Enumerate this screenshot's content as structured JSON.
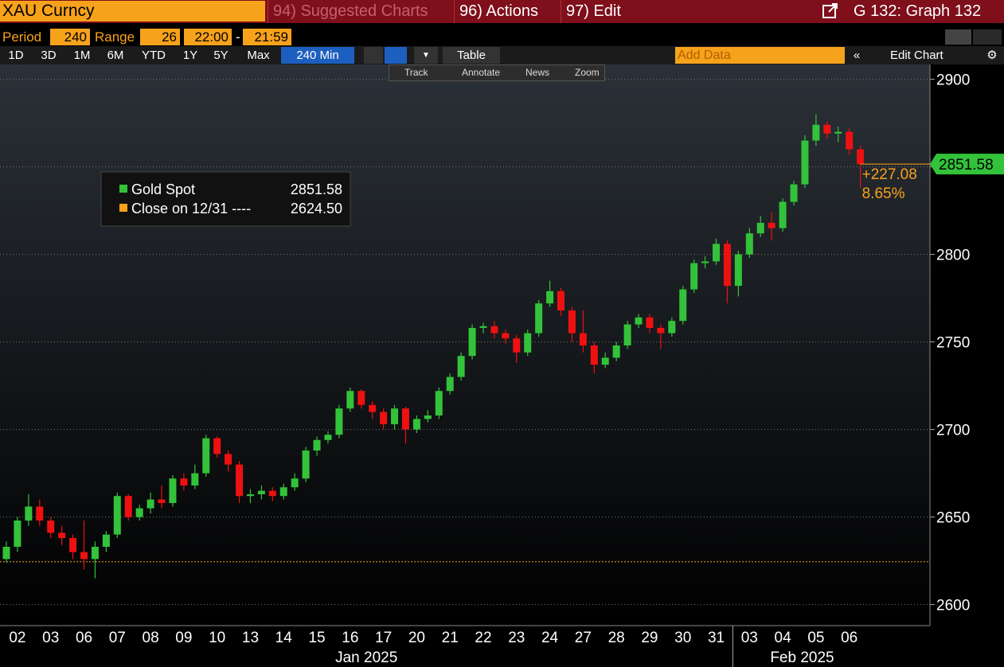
{
  "ui": {
    "security": "XAU Curncy",
    "menus": [
      "94) Suggested Charts",
      "96) Actions",
      "97) Edit"
    ],
    "graph": "G 132: Graph 132",
    "period_label": "Period",
    "period": 240,
    "range_label": "Range",
    "range": 26,
    "start": "22:00",
    "dash": "-",
    "end": "21:59",
    "ranges": [
      "1D",
      "3D",
      "1M",
      "6M",
      "YTD",
      "1Y",
      "5Y",
      "Max",
      "240 Min"
    ],
    "table": "Table",
    "add_data": "Add Data",
    "edit_chart": "Edit Chart",
    "tools": [
      "Track",
      "Annotate",
      "News",
      "Zoom"
    ]
  },
  "chart_data": {
    "type": "candlestick",
    "categories": [
      null,
      "02",
      null,
      null,
      "03",
      null,
      null,
      "06",
      null,
      null,
      "07",
      null,
      null,
      "08",
      null,
      null,
      "09",
      null,
      null,
      "10",
      null,
      null,
      "13",
      null,
      null,
      "14",
      null,
      null,
      "15",
      null,
      null,
      "16",
      null,
      null,
      "17",
      null,
      null,
      "20",
      null,
      null,
      "21",
      null,
      null,
      "22",
      null,
      null,
      "23",
      null,
      null,
      "24",
      null,
      null,
      "27",
      null,
      null,
      "28",
      null,
      null,
      "29",
      null,
      null,
      "30",
      null,
      null,
      "31",
      null,
      null,
      "03",
      null,
      null,
      "04",
      null,
      null,
      "05",
      null,
      null,
      "06",
      null
    ],
    "months": [
      "Jan 2025",
      "Feb 2025"
    ],
    "series": [
      {
        "name": "Gold Spot",
        "up_color": "#33c23a",
        "down_color": "#ee1111",
        "open": [
          2626,
          2633,
          2648,
          2656,
          2648,
          2641,
          2638,
          2630,
          2626,
          2633,
          2640,
          2662,
          2650,
          2655,
          2660,
          2658,
          2672,
          2668,
          2675,
          2695,
          2686,
          2680,
          2662,
          2663,
          2665,
          2662,
          2667,
          2672,
          2688,
          2694,
          2697,
          2712,
          2722,
          2714,
          2710,
          2703,
          2712,
          2700,
          2706,
          2708,
          2722,
          2730,
          2742,
          2758,
          2759,
          2755,
          2752,
          2744,
          2755,
          2772,
          2779,
          2768,
          2755,
          2748,
          2737,
          2741,
          2748,
          2760,
          2764,
          2758,
          2755,
          2762,
          2780,
          2795,
          2796,
          2806,
          2782,
          2800,
          2812,
          2818,
          2815,
          2830,
          2840,
          2865,
          2874,
          2869,
          2870,
          2860
        ],
        "high": [
          2636,
          2650,
          2663,
          2660,
          2650,
          2645,
          2640,
          2648,
          2636,
          2642,
          2664,
          2663,
          2657,
          2664,
          2668,
          2674,
          2675,
          2680,
          2697,
          2696,
          2688,
          2682,
          2666,
          2668,
          2667,
          2669,
          2675,
          2690,
          2696,
          2699,
          2714,
          2724,
          2723,
          2716,
          2712,
          2714,
          2713,
          2708,
          2711,
          2724,
          2732,
          2744,
          2760,
          2761,
          2762,
          2757,
          2754,
          2757,
          2774,
          2785,
          2781,
          2770,
          2768,
          2750,
          2744,
          2750,
          2762,
          2766,
          2766,
          2760,
          2764,
          2782,
          2797,
          2799,
          2809,
          2808,
          2802,
          2815,
          2822,
          2824,
          2832,
          2842,
          2868,
          2880,
          2876,
          2873,
          2872,
          2862
        ],
        "low": [
          2624,
          2630,
          2645,
          2645,
          2638,
          2634,
          2626,
          2620,
          2615,
          2630,
          2638,
          2648,
          2648,
          2652,
          2655,
          2656,
          2665,
          2666,
          2673,
          2684,
          2676,
          2658,
          2658,
          2660,
          2659,
          2660,
          2665,
          2670,
          2685,
          2692,
          2695,
          2710,
          2712,
          2706,
          2700,
          2700,
          2692,
          2698,
          2704,
          2706,
          2720,
          2728,
          2740,
          2755,
          2752,
          2749,
          2738,
          2742,
          2753,
          2770,
          2765,
          2750,
          2744,
          2732,
          2735,
          2739,
          2746,
          2758,
          2755,
          2746,
          2753,
          2760,
          2778,
          2792,
          2794,
          2772,
          2776,
          2798,
          2810,
          2808,
          2813,
          2828,
          2838,
          2862,
          2866,
          2864,
          2857,
          2838
        ],
        "close": [
          2633,
          2648,
          2656,
          2648,
          2641,
          2638,
          2630,
          2626,
          2633,
          2640,
          2662,
          2650,
          2655,
          2660,
          2658,
          2672,
          2668,
          2675,
          2695,
          2686,
          2680,
          2662,
          2663,
          2665,
          2662,
          2667,
          2672,
          2688,
          2694,
          2697,
          2712,
          2722,
          2714,
          2710,
          2703,
          2712,
          2700,
          2706,
          2708,
          2722,
          2730,
          2742,
          2758,
          2759,
          2755,
          2752,
          2744,
          2755,
          2772,
          2779,
          2768,
          2755,
          2748,
          2737,
          2741,
          2748,
          2760,
          2764,
          2758,
          2755,
          2762,
          2780,
          2795,
          2796,
          2806,
          2782,
          2800,
          2812,
          2818,
          2815,
          2830,
          2840,
          2865,
          2874,
          2869,
          2870,
          2860,
          2851.58
        ]
      }
    ],
    "reference": {
      "name": "Close on 12/31 ----",
      "color": "#f7a21b",
      "values": [
        2624.5
      ],
      "value_labels": [
        "2624.50"
      ]
    },
    "change": {
      "color": "#f7a21b",
      "values": [
        227.08,
        8.65
      ],
      "value_labels": [
        "+227.08",
        "8.65%"
      ]
    },
    "ylim": [
      2588,
      2908
    ],
    "yticks": [
      2600,
      2650,
      2700,
      2750,
      2800,
      2850,
      2900
    ],
    "grid": true
  }
}
